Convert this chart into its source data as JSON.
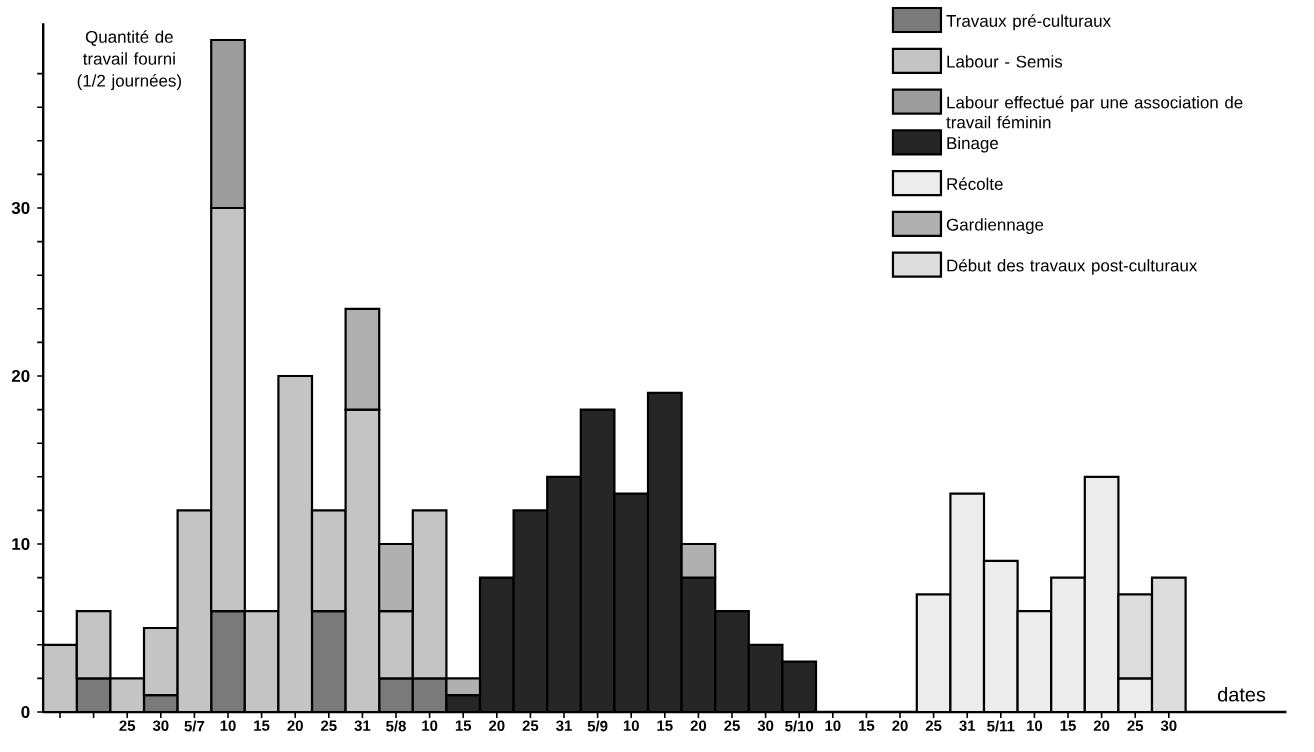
{
  "chart_data": {
    "type": "bar",
    "stacked": true,
    "ylabel": "Quantité de travail fourni (1/2 journées)",
    "xlabel": "dates",
    "categories": [
      null,
      null,
      "25",
      "30",
      "5/7",
      "10",
      "15",
      "20",
      "25",
      "31",
      "5/8",
      "10",
      "15",
      "20",
      "25",
      "31",
      "5/9",
      "10",
      "15",
      "20",
      "25",
      "30",
      "5/10",
      "10",
      "15",
      "20",
      "25",
      "31",
      "5/11",
      "10",
      "15",
      "20",
      "25",
      "30"
    ],
    "ylim": [
      0,
      41
    ],
    "yticks": [
      0,
      {
        "value": 2,
        "label": null
      },
      {
        "value": 4,
        "label": null
      },
      {
        "value": 6,
        "label": null
      },
      {
        "value": 8,
        "label": null
      },
      10,
      {
        "value": 12,
        "label": null
      },
      {
        "value": 14,
        "label": null
      },
      {
        "value": 16,
        "label": null
      },
      {
        "value": 18,
        "label": null
      },
      20,
      {
        "value": 22,
        "label": null
      },
      {
        "value": 24,
        "label": null
      },
      {
        "value": 26,
        "label": null
      },
      {
        "value": 28,
        "label": null
      },
      30,
      {
        "value": 32,
        "label": null
      },
      {
        "value": 34,
        "label": null
      },
      {
        "value": 36,
        "label": null
      },
      {
        "value": 38,
        "label": null
      }
    ],
    "legend": "top right",
    "series": [
      {
        "name": "Travaux pré-culturaux",
        "color": "#7a7a7a",
        "values": [
          null,
          2,
          null,
          1,
          null,
          6,
          null,
          null,
          6,
          null,
          2,
          2,
          null,
          null,
          null,
          null,
          null,
          null,
          null,
          null,
          null,
          null,
          null,
          null,
          null,
          null,
          null,
          null,
          null,
          null,
          null,
          null,
          null,
          null
        ]
      },
      {
        "name": "Labour - Semis",
        "color": "#c4c4c4",
        "values": [
          4,
          4,
          2,
          4,
          12,
          24,
          6,
          20,
          6,
          18,
          4,
          10,
          null,
          null,
          null,
          null,
          null,
          null,
          null,
          null,
          null,
          null,
          null,
          null,
          null,
          null,
          null,
          null,
          null,
          null,
          null,
          null,
          null,
          null
        ]
      },
      {
        "name": "Labour effectué par une association de travail féminin",
        "color": "#9c9c9c",
        "values": [
          null,
          null,
          null,
          null,
          null,
          10,
          null,
          null,
          null,
          null,
          null,
          null,
          null,
          null,
          null,
          null,
          null,
          null,
          null,
          null,
          null,
          null,
          null,
          null,
          null,
          null,
          null,
          null,
          null,
          null,
          null,
          null,
          null,
          null
        ]
      },
      {
        "name": "Binage",
        "color": "#262626",
        "values": [
          null,
          null,
          null,
          null,
          null,
          null,
          null,
          null,
          null,
          null,
          null,
          null,
          1,
          8,
          12,
          14,
          18,
          13,
          19,
          8,
          6,
          4,
          3,
          null,
          null,
          null,
          null,
          null,
          null,
          null,
          null,
          null,
          null,
          null
        ]
      },
      {
        "name": "Récolte",
        "color": "#ececec",
        "values": [
          null,
          null,
          null,
          null,
          null,
          null,
          null,
          null,
          null,
          null,
          null,
          null,
          null,
          null,
          null,
          null,
          null,
          null,
          null,
          null,
          null,
          null,
          null,
          null,
          null,
          null,
          7,
          13,
          9,
          6,
          8,
          14,
          2,
          null
        ]
      },
      {
        "name": "Gardiennage",
        "color": "#b0b0b0",
        "values": [
          null,
          null,
          null,
          null,
          null,
          null,
          null,
          null,
          null,
          6,
          4,
          null,
          1,
          null,
          null,
          null,
          null,
          null,
          null,
          2,
          null,
          null,
          null,
          null,
          null,
          null,
          null,
          null,
          null,
          null,
          null,
          null,
          null,
          null
        ]
      },
      {
        "name": "Début des travaux post-culturaux",
        "color": "#dcdcdc",
        "values": [
          null,
          null,
          null,
          null,
          null,
          null,
          null,
          null,
          null,
          null,
          null,
          null,
          null,
          null,
          null,
          null,
          null,
          null,
          null,
          null,
          null,
          null,
          null,
          null,
          null,
          null,
          null,
          null,
          null,
          null,
          null,
          null,
          5,
          8
        ]
      }
    ]
  }
}
